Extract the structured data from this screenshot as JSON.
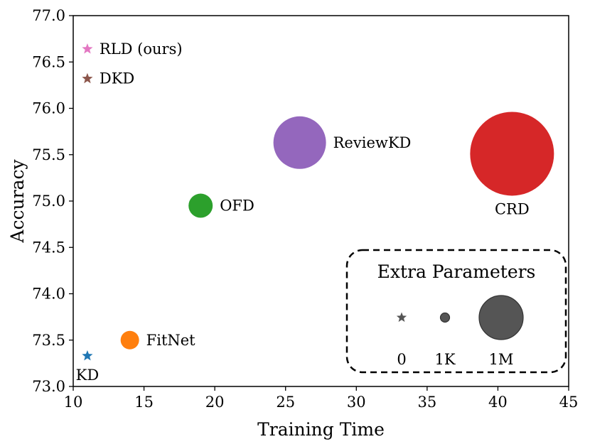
{
  "chart_data": {
    "type": "scatter",
    "title": "",
    "xlabel": "Training Time",
    "ylabel": "Accuracy",
    "xlim": [
      10,
      45
    ],
    "ylim": [
      73.0,
      77.0
    ],
    "xticks": [
      10,
      15,
      20,
      25,
      30,
      35,
      40,
      45
    ],
    "yticks": [
      73.0,
      73.5,
      74.0,
      74.5,
      75.0,
      75.5,
      76.0,
      76.5,
      77.0
    ],
    "xtick_labels": [
      "10",
      "15",
      "20",
      "25",
      "30",
      "35",
      "40",
      "45"
    ],
    "ytick_labels": [
      "73.0",
      "73.5",
      "74.0",
      "74.5",
      "75.0",
      "75.5",
      "76.0",
      "76.5",
      "77.0"
    ],
    "grid": false,
    "points": [
      {
        "name": "RLD (ours)",
        "x": 11,
        "y": 76.64,
        "extra_params": "0",
        "marker": "star",
        "color": "#e377c2",
        "label_position": "right"
      },
      {
        "name": "DKD",
        "x": 11,
        "y": 76.32,
        "extra_params": "0",
        "marker": "star",
        "color": "#8c564b",
        "label_position": "right"
      },
      {
        "name": "ReviewKD",
        "x": 26,
        "y": 75.63,
        "extra_params": "1M",
        "marker": "circle",
        "color": "#9467bd",
        "label_position": "right"
      },
      {
        "name": "CRD",
        "x": 41,
        "y": 75.51,
        "extra_params": "1M",
        "marker": "circle",
        "color": "#d62728",
        "label_position": "below"
      },
      {
        "name": "OFD",
        "x": 19,
        "y": 74.95,
        "extra_params": "1K",
        "marker": "circle",
        "color": "#2ca02c",
        "label_position": "right"
      },
      {
        "name": "FitNet",
        "x": 14,
        "y": 73.5,
        "extra_params": "1K",
        "marker": "circle",
        "color": "#ff7f0e",
        "label_position": "right"
      },
      {
        "name": "KD",
        "x": 11,
        "y": 73.33,
        "extra_params": "0",
        "marker": "star",
        "color": "#1f77b4",
        "label_position": "below"
      }
    ],
    "legend": {
      "title": "Extra Parameters",
      "placement": "lower-right",
      "entries": [
        {
          "label": "0",
          "marker": "star"
        },
        {
          "label": "1K",
          "marker": "circle-small"
        },
        {
          "label": "1M",
          "marker": "circle-large"
        }
      ],
      "color": "#555555"
    }
  }
}
